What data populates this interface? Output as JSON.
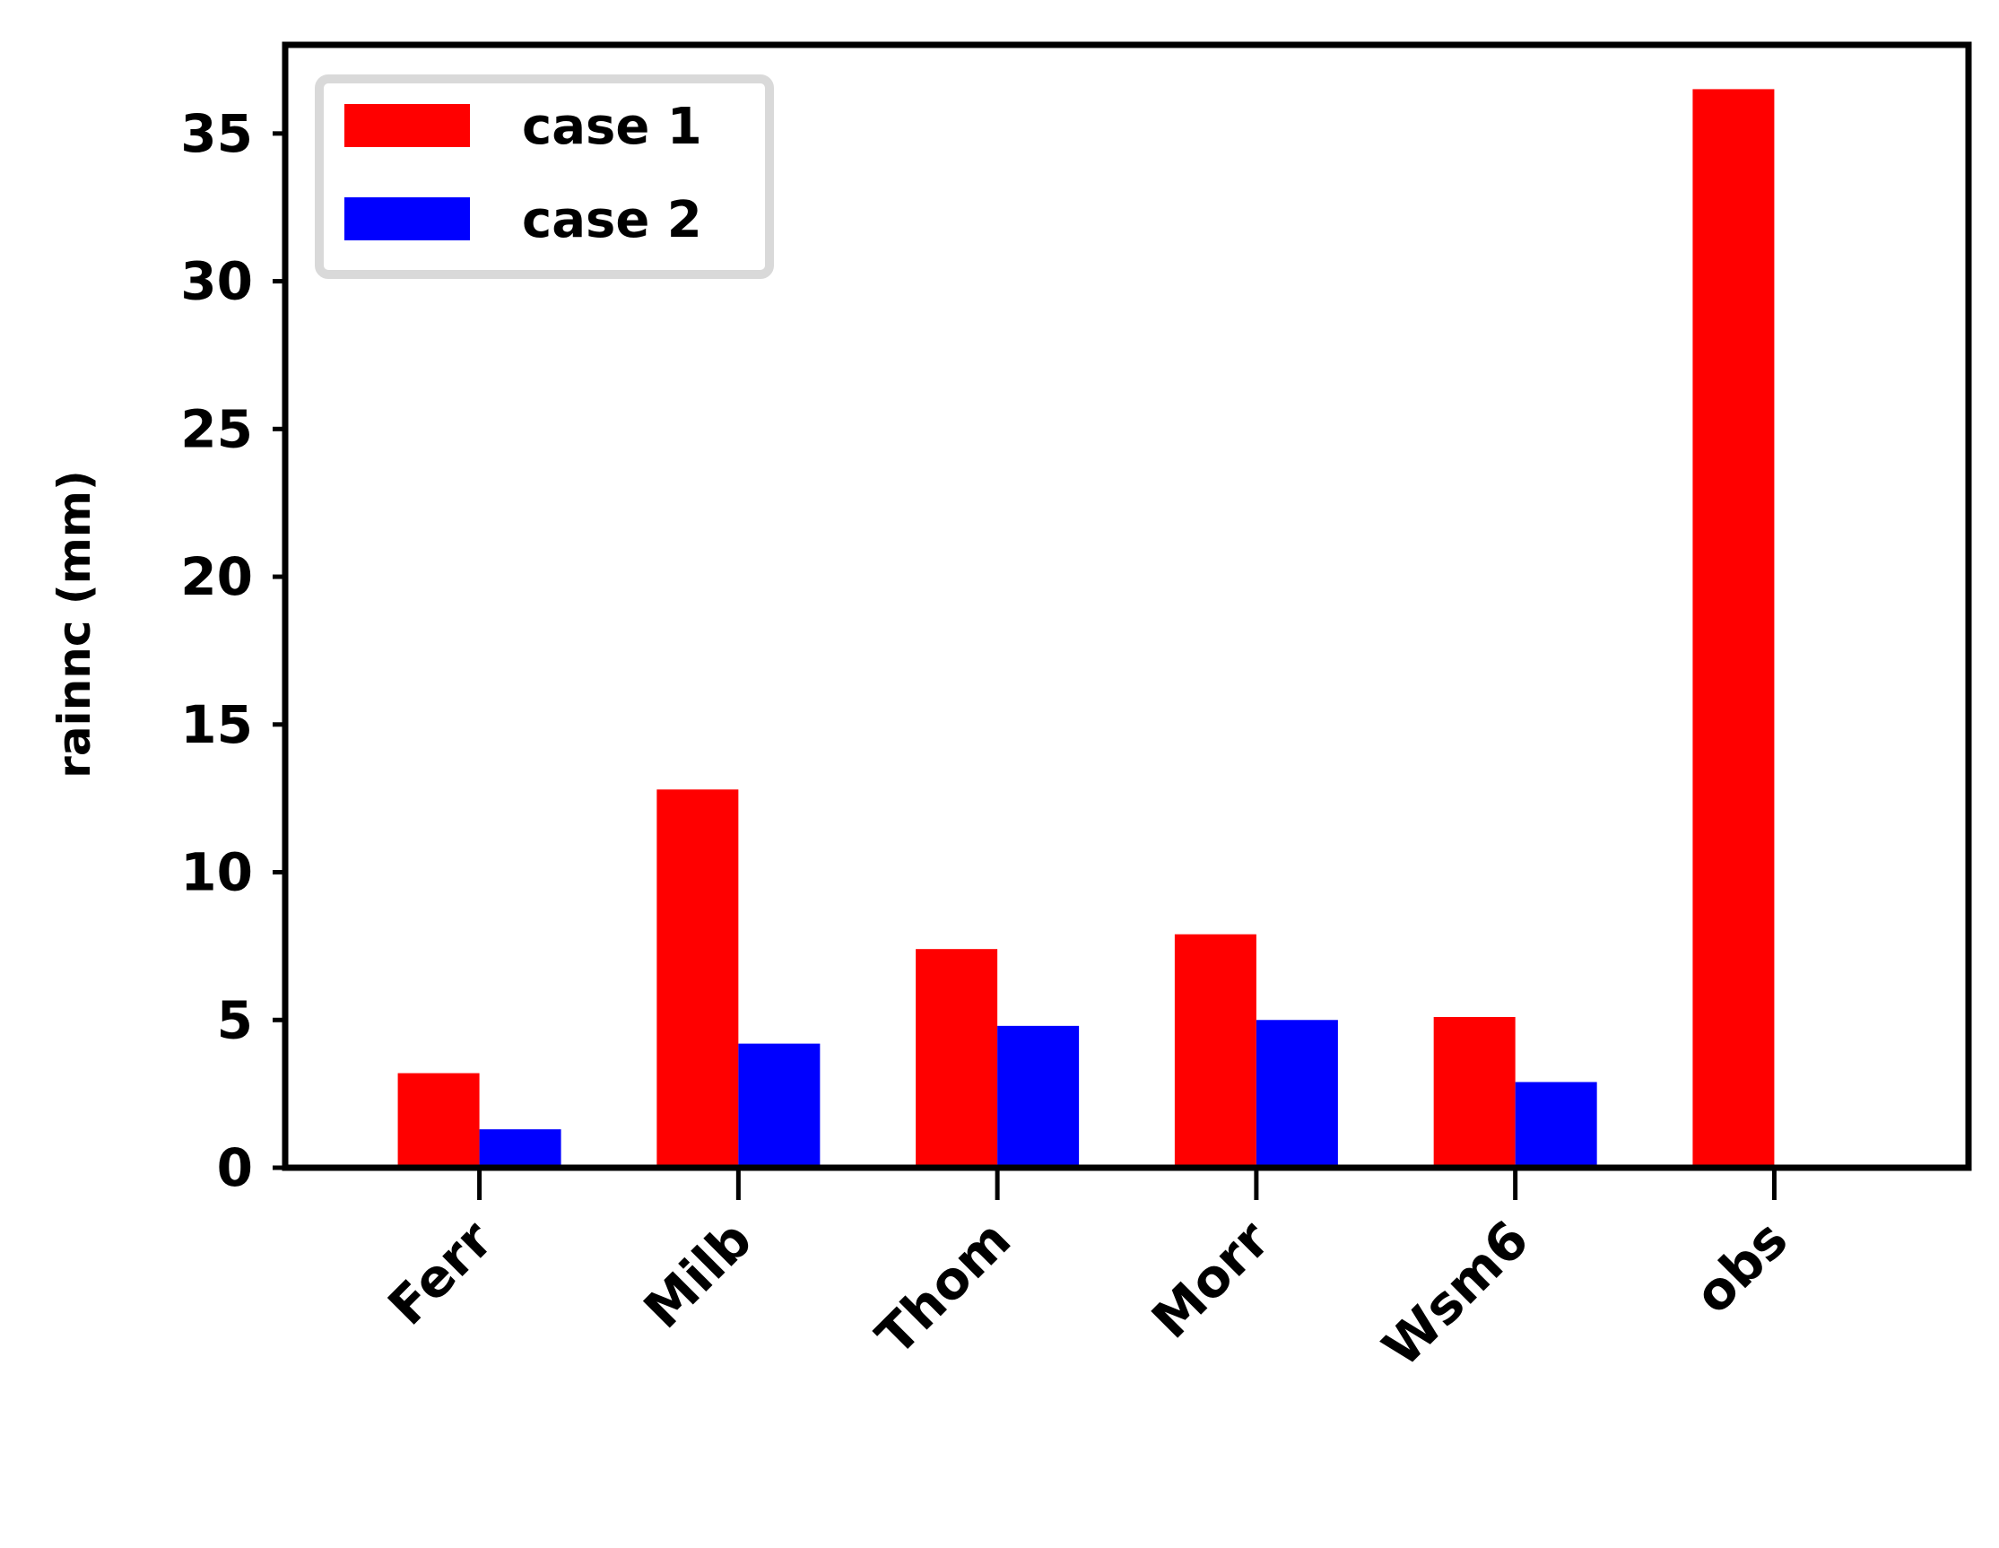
{
  "chart_data": {
    "type": "bar",
    "categories": [
      "Ferr",
      "Milb",
      "Thom",
      "Morr",
      "Wsm6",
      "obs"
    ],
    "series": [
      {
        "name": "case 1",
        "color": "#ff0000",
        "values": [
          3.2,
          12.8,
          7.4,
          7.9,
          5.1,
          36.5
        ]
      },
      {
        "name": "case 2",
        "color": "#0000ff",
        "values": [
          1.3,
          4.2,
          4.8,
          5.0,
          2.9,
          null
        ]
      }
    ],
    "xlabel": "",
    "ylabel": "rainnc (mm)",
    "ylim": [
      0,
      38
    ],
    "yticks": [
      0,
      5,
      10,
      15,
      20,
      25,
      30,
      35
    ],
    "xtick_rotation_deg": 45,
    "grid": false,
    "legend_position": "top-left"
  }
}
